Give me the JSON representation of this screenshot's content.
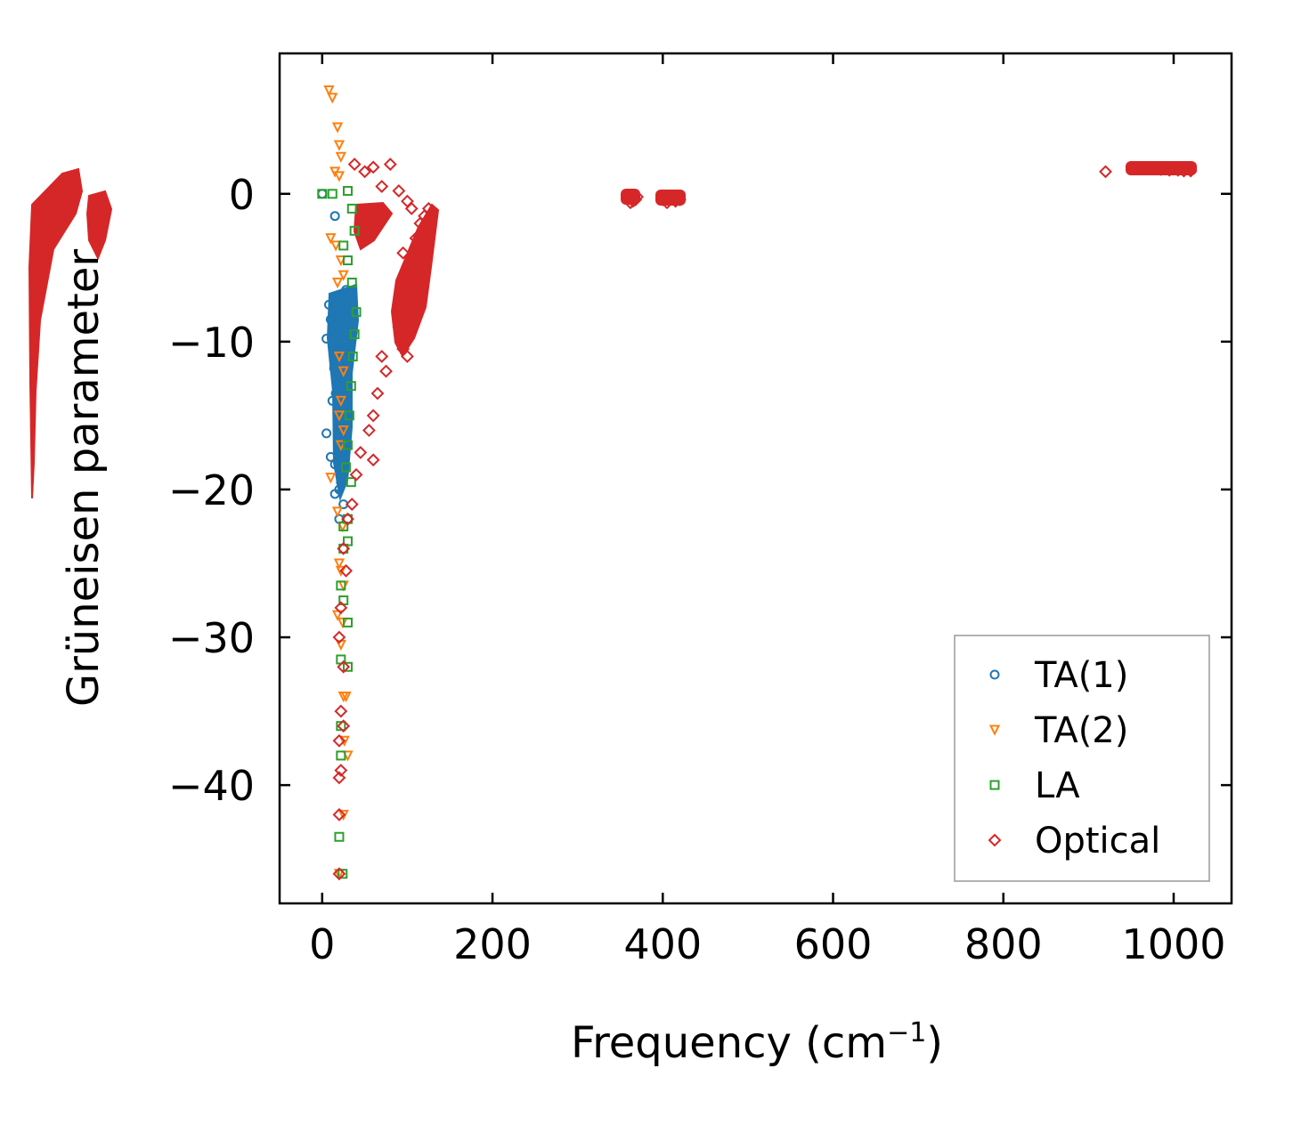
{
  "chart_data": {
    "type": "scatter",
    "title": "",
    "xlabel": "Frequency (cm",
    "xlabel_sup": "−1",
    "xlabel_close": ")",
    "ylabel": "Grüneisen parameter",
    "xlim": [
      -50,
      1068
    ],
    "ylim": [
      -48,
      9.5
    ],
    "xticks": [
      0,
      200,
      400,
      600,
      800,
      1000
    ],
    "xtick_labels": [
      "0",
      "200",
      "400",
      "600",
      "800",
      "1000"
    ],
    "yticks": [
      0,
      -10,
      -20,
      -30,
      -40
    ],
    "ytick_labels": [
      "0",
      "−10",
      "−20",
      "−30",
      "−40"
    ],
    "legend_position": "lower-right",
    "grid": false,
    "series": [
      {
        "name": "TA(1)",
        "marker": "circle",
        "color": "#1f77b4",
        "points": [
          [
            0,
            0
          ],
          [
            15,
            -1.5
          ],
          [
            8,
            -7.5
          ],
          [
            10,
            -8.5
          ],
          [
            12,
            -9.2
          ],
          [
            5,
            -9.8
          ],
          [
            18,
            -10.5
          ],
          [
            14,
            -11.8
          ],
          [
            20,
            -12.3
          ],
          [
            22,
            -12.8
          ],
          [
            16,
            -13.5
          ],
          [
            12,
            -14
          ],
          [
            25,
            -14.5
          ],
          [
            20,
            -15
          ],
          [
            18,
            -15.5
          ],
          [
            22,
            -16
          ],
          [
            5,
            -16.2
          ],
          [
            24,
            -16.8
          ],
          [
            20,
            -17.5
          ],
          [
            10,
            -17.8
          ],
          [
            15,
            -18.3
          ],
          [
            25,
            -19
          ],
          [
            22,
            -19.5
          ],
          [
            20,
            -20
          ],
          [
            15,
            -20.3
          ],
          [
            25,
            -21
          ],
          [
            20,
            -22
          ],
          [
            28,
            -12
          ],
          [
            26,
            -10
          ],
          [
            30,
            -9
          ],
          [
            24,
            -8
          ],
          [
            22,
            -7
          ],
          [
            28,
            -6.5
          ],
          [
            32,
            -7.2
          ],
          [
            19,
            -11
          ],
          [
            21,
            -13
          ]
        ]
      },
      {
        "name": "TA(2)",
        "marker": "triangle",
        "color": "#ff7f0e",
        "points": [
          [
            8,
            7
          ],
          [
            12,
            6.5
          ],
          [
            18,
            4.5
          ],
          [
            20,
            3.3
          ],
          [
            22,
            2.5
          ],
          [
            15,
            1.5
          ],
          [
            20,
            1.2
          ],
          [
            10,
            -3
          ],
          [
            16,
            -3.5
          ],
          [
            22,
            -4.5
          ],
          [
            25,
            -5.5
          ],
          [
            18,
            -6
          ],
          [
            20,
            -11
          ],
          [
            25,
            -12
          ],
          [
            22,
            -14
          ],
          [
            20,
            -15
          ],
          [
            25,
            -16
          ],
          [
            22,
            -17
          ],
          [
            10,
            -19.2
          ],
          [
            18,
            -21.5
          ],
          [
            24,
            -22.5
          ],
          [
            20,
            -25
          ],
          [
            22,
            -25.5
          ],
          [
            25,
            -26.5
          ],
          [
            18,
            -28.5
          ],
          [
            24,
            -29
          ],
          [
            22,
            -30.5
          ],
          [
            25,
            -34
          ],
          [
            28,
            -34
          ],
          [
            26,
            -37
          ],
          [
            30,
            -38
          ],
          [
            25,
            -42
          ],
          [
            20,
            -46
          ]
        ]
      },
      {
        "name": "LA",
        "marker": "square",
        "color": "#2ca02c",
        "points": [
          [
            0,
            0
          ],
          [
            12,
            0
          ],
          [
            30,
            0.2
          ],
          [
            35,
            -1
          ],
          [
            38,
            -2.5
          ],
          [
            25,
            -3.5
          ],
          [
            30,
            -4.5
          ],
          [
            35,
            -6
          ],
          [
            40,
            -8
          ],
          [
            38,
            -9.5
          ],
          [
            36,
            -11
          ],
          [
            34,
            -13
          ],
          [
            32,
            -15
          ],
          [
            30,
            -17
          ],
          [
            28,
            -18.5
          ],
          [
            34,
            -19.5
          ],
          [
            30,
            -22
          ],
          [
            25,
            -22.5
          ],
          [
            30,
            -23.5
          ],
          [
            25,
            -24
          ],
          [
            22,
            -26.5
          ],
          [
            25,
            -27.5
          ],
          [
            30,
            -29
          ],
          [
            22,
            -31.5
          ],
          [
            30,
            -32
          ],
          [
            22,
            -36
          ],
          [
            22,
            -38
          ],
          [
            20,
            -43.5
          ],
          [
            24,
            -46
          ]
        ]
      },
      {
        "name": "Optical",
        "marker": "diamond",
        "color": "#d62728",
        "points": [
          [
            38,
            2
          ],
          [
            50,
            1.5
          ],
          [
            60,
            1.8
          ],
          [
            70,
            0.5
          ],
          [
            80,
            2
          ],
          [
            90,
            0.2
          ],
          [
            100,
            -0.5
          ],
          [
            105,
            -1
          ],
          [
            115,
            -2
          ],
          [
            120,
            -1.5
          ],
          [
            125,
            -1
          ],
          [
            110,
            -3
          ],
          [
            95,
            -4
          ],
          [
            100,
            -6
          ],
          [
            110,
            -7.5
          ],
          [
            90,
            -9
          ],
          [
            95,
            -10.5
          ],
          [
            100,
            -11
          ],
          [
            70,
            -11
          ],
          [
            75,
            -12
          ],
          [
            65,
            -13.5
          ],
          [
            60,
            -15
          ],
          [
            55,
            -16
          ],
          [
            60,
            -18
          ],
          [
            45,
            -17.5
          ],
          [
            40,
            -19
          ],
          [
            35,
            -21
          ],
          [
            30,
            -22
          ],
          [
            25,
            -24
          ],
          [
            28,
            -25.5
          ],
          [
            22,
            -28
          ],
          [
            20,
            -30
          ],
          [
            25,
            -32
          ],
          [
            22,
            -35
          ],
          [
            25,
            -36
          ],
          [
            20,
            -37
          ],
          [
            22,
            -39
          ],
          [
            20,
            -39.5
          ],
          [
            20,
            -42
          ],
          [
            20,
            -46
          ],
          [
            360,
            -0.3
          ],
          [
            365,
            -0.5
          ],
          [
            370,
            -0.2
          ],
          [
            362,
            -0.6
          ],
          [
            368,
            -0.4
          ],
          [
            400,
            -0.4
          ],
          [
            405,
            -0.6
          ],
          [
            410,
            -0.3
          ],
          [
            415,
            -0.5
          ],
          [
            420,
            -0.4
          ],
          [
            920,
            1.5
          ],
          [
            965,
            1.7
          ],
          [
            975,
            1.7
          ],
          [
            985,
            1.65
          ],
          [
            995,
            1.6
          ],
          [
            1005,
            1.6
          ],
          [
            1012,
            1.55
          ],
          [
            1020,
            1.55
          ]
        ]
      }
    ]
  }
}
